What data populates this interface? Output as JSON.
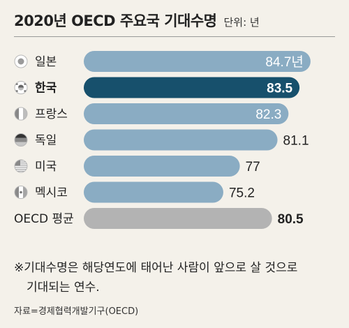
{
  "header": {
    "title": "2020년 OECD 주요국 기대수명",
    "unit": "단위: 년"
  },
  "note": {
    "line1": "※기대수명은 해당연도에 태어난 사람이 앞으로 살 것으로",
    "line2": "기대되는 연수."
  },
  "source": "자료=경제협력개발기구(OECD)",
  "colors": {
    "bar_default": "#8aacc3",
    "bar_highlight": "#17506c",
    "bar_average": "#b3b3b3",
    "background": "#f4f1ea"
  },
  "chart_data": {
    "type": "bar",
    "orientation": "horizontal",
    "categories": [
      "일본",
      "한국",
      "프랑스",
      "독일",
      "미국",
      "멕시코",
      "OECD 평균"
    ],
    "values": [
      84.7,
      83.5,
      82.3,
      81.1,
      77,
      75.2,
      80.5
    ],
    "value_labels": [
      "84.7년",
      "83.5",
      "82.3",
      "81.1",
      "77",
      "75.2",
      "80.5"
    ],
    "flags": [
      "japan-flag-icon",
      "korea-flag-icon",
      "france-flag-icon",
      "germany-flag-icon",
      "usa-flag-icon",
      "mexico-flag-icon",
      ""
    ],
    "highlight": "한국",
    "xlim": [
      60,
      86
    ]
  }
}
